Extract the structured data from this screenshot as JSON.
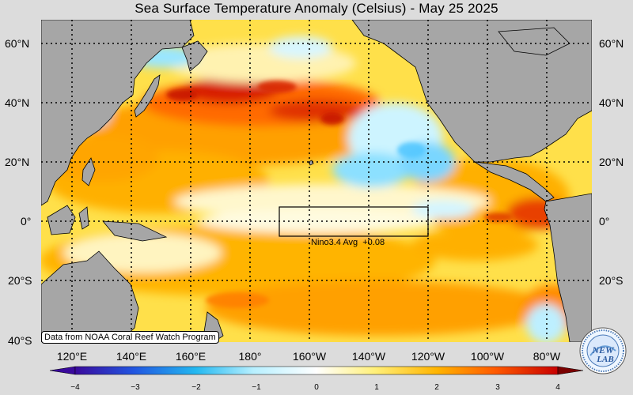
{
  "title": "Sea Surface Temperature Anomaly (Celsius) - May 25 2025",
  "credit": "Data from NOAA Coral Reef Watch Program",
  "nino_box": {
    "label": "Nino3.4 Avg",
    "value": "+0.08",
    "lon_range": [
      "170°W",
      "120°W"
    ],
    "lat_range": [
      "5°S",
      "5°N"
    ]
  },
  "lat_labels": [
    "60°N",
    "40°N",
    "20°N",
    "0°",
    "20°S",
    "40°S"
  ],
  "lon_labels": [
    "120°E",
    "140°E",
    "160°E",
    "180°",
    "160°W",
    "140°W",
    "120°W",
    "100°W",
    "80°W"
  ],
  "colorbar": {
    "ticks": [
      "−4",
      "−3",
      "−2",
      "−1",
      "0",
      "1",
      "2",
      "3",
      "4"
    ],
    "colors": [
      "#3a0a9c",
      "#2255e0",
      "#23b8f0",
      "#b8f0ff",
      "#ffffff",
      "#fff07a",
      "#ffb400",
      "#ff5a00",
      "#c80000",
      "#7a0000"
    ]
  },
  "logo": {
    "text": "NEW LAB"
  },
  "colors": {
    "land": "#a6a6a6",
    "background": "#dcdcdc",
    "warm_anomaly": "#ff8c00",
    "cool_anomaly": "#8be8ff"
  }
}
